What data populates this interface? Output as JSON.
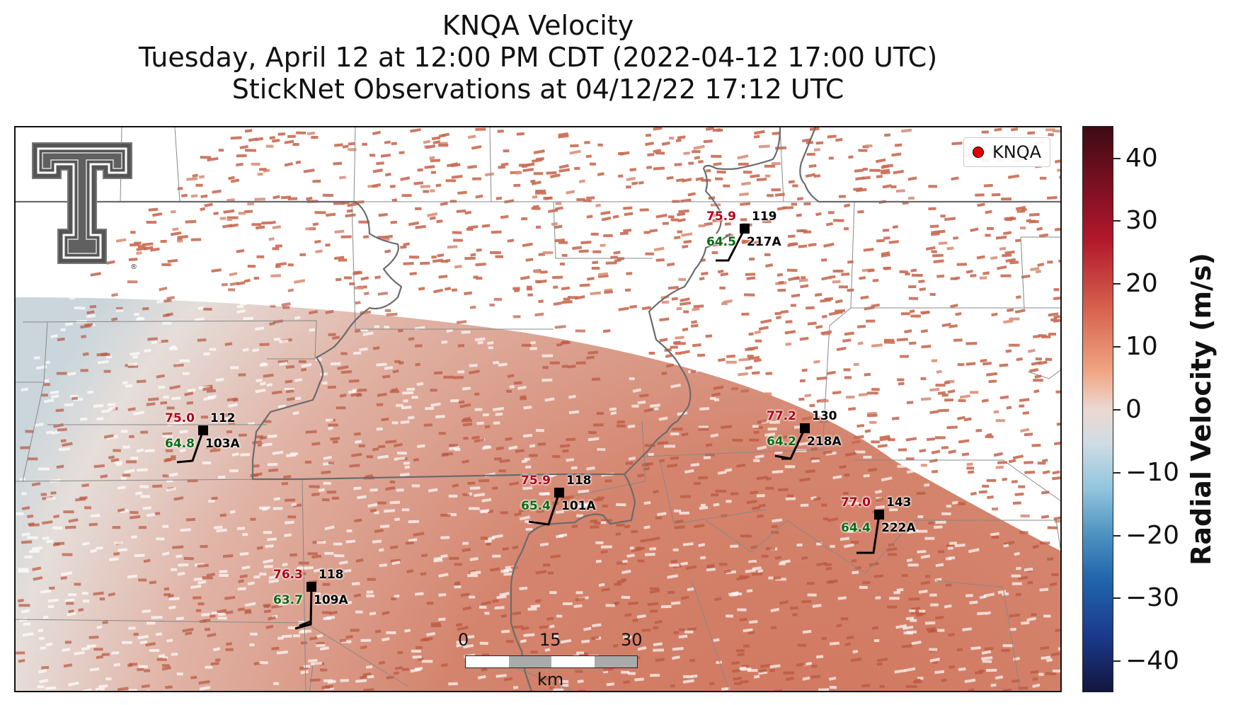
{
  "title": {
    "line1": "KNQA Velocity",
    "line2": "Tuesday, April 12 at 12:00 PM CDT (2022-04-12 17:00 UTC)",
    "line3": "StickNet Observations at 04/12/22 17:12 UTC"
  },
  "legend": {
    "label": "KNQA",
    "marker_color": "#e00000"
  },
  "scale_bar": {
    "ticks": [
      "0",
      "15",
      "30"
    ],
    "unit": "km"
  },
  "stations": [
    {
      "id": "217A",
      "temp": "75.9",
      "dew": "64.5",
      "wind_dir": "119"
    },
    {
      "id": "103A",
      "temp": "75.0",
      "dew": "64.8",
      "wind_dir": "112"
    },
    {
      "id": "218A",
      "temp": "77.2",
      "dew": "64.2",
      "wind_dir": "130"
    },
    {
      "id": "101A",
      "temp": "75.9",
      "dew": "65.4",
      "wind_dir": "118"
    },
    {
      "id": "222A",
      "temp": "77.0",
      "dew": "64.4",
      "wind_dir": "143"
    },
    {
      "id": "109A",
      "temp": "76.3",
      "dew": "63.7",
      "wind_dir": "118"
    }
  ],
  "colorbar": {
    "label": "Radial Velocity (m/s)",
    "ticks": [
      "40",
      "30",
      "20",
      "10",
      "0",
      "−10",
      "−20",
      "−30",
      "−40"
    ],
    "range": [
      -45,
      45
    ],
    "colors": {
      "max": "#3d0b12",
      "zero": "#ecd8d0",
      "min": "#12163e"
    }
  },
  "logo": {
    "name": "Texas Tech double-T logo",
    "mark": "®"
  }
}
